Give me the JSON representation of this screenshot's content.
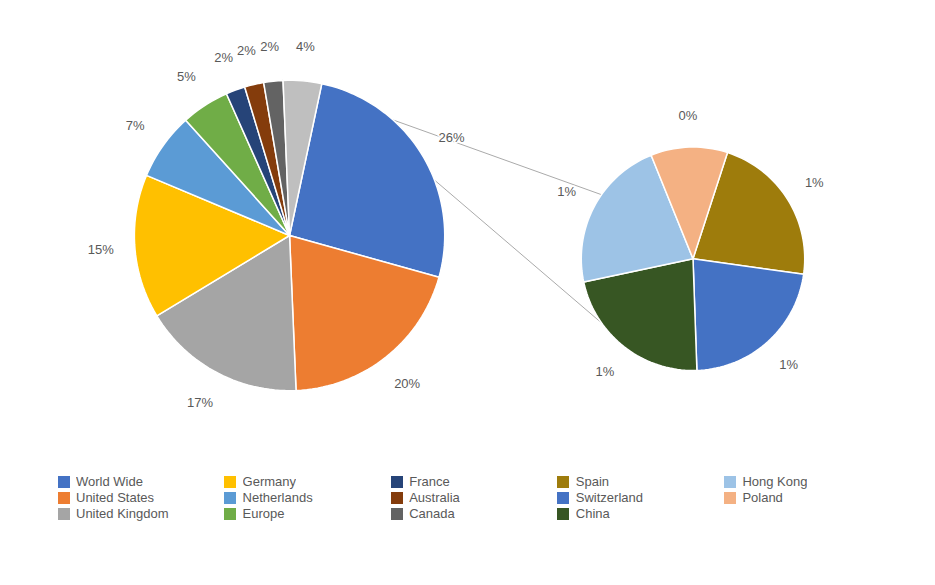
{
  "chart_data": [
    {
      "type": "pie",
      "categories": [
        "World Wide",
        "United States",
        "United Kingdom",
        "Germany",
        "Netherlands",
        "Europe",
        "France",
        "Australia",
        "Canada",
        null
      ],
      "values": [
        26,
        20,
        17,
        15,
        7,
        5,
        2,
        2,
        2,
        4
      ],
      "value_labels": [
        "26%",
        "20%",
        "17%",
        "15%",
        "7%",
        "5%",
        "2%",
        "2%",
        "2%",
        "4%"
      ],
      "colors": [
        "#4472C4",
        "#ED7D31",
        "#A5A5A5",
        "#FFC000",
        "#5B9BD5",
        "#70AD47",
        "#264478",
        "#843C0C",
        "#636363",
        "#BFBFBF"
      ],
      "data_labels": true,
      "legend": "bottom"
    },
    {
      "type": "pie",
      "categories": [
        "Spain",
        "Switzerland",
        "China",
        "Hong Kong",
        "Poland"
      ],
      "values": [
        1,
        1,
        1,
        1,
        0.5
      ],
      "value_labels": [
        "1%",
        "1%",
        "1%",
        "1%",
        "0%"
      ],
      "colors": [
        "#9E7C0C",
        "#4472C4",
        "#375623",
        "#9DC3E6",
        "#F4B183"
      ],
      "data_labels": true,
      "legend": "bottom"
    }
  ]
}
